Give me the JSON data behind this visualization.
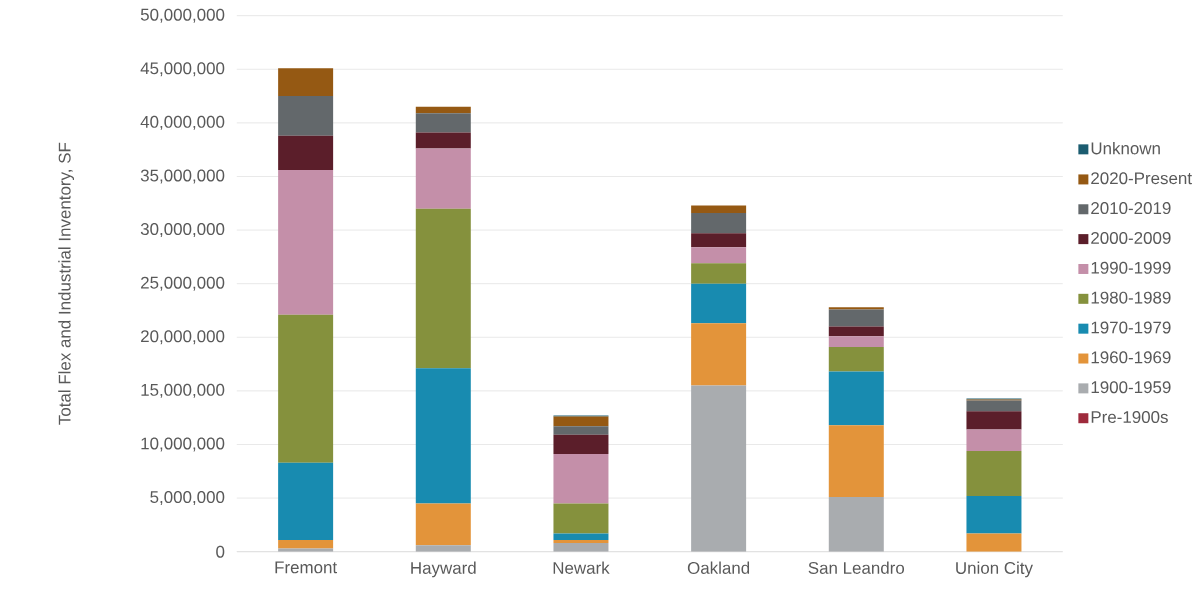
{
  "chart_data": {
    "type": "bar",
    "stacked": true,
    "ylabel": "Total Flex and Industrial Inventory, SF",
    "categories": [
      "Fremont",
      "Hayward",
      "Newark",
      "Oakland",
      "San Leandro",
      "Union City"
    ],
    "series": [
      {
        "name": "Pre-1900s",
        "color": "#9e2a3c",
        "values": [
          0,
          0,
          0,
          0,
          0,
          0
        ]
      },
      {
        "name": "1900-1959",
        "color": "#a9acaf",
        "values": [
          300000,
          600000,
          800000,
          15500000,
          5100000,
          0
        ]
      },
      {
        "name": "1960-1969",
        "color": "#e3943a",
        "values": [
          800000,
          3900000,
          300000,
          5800000,
          6700000,
          1700000
        ]
      },
      {
        "name": "1970-1979",
        "color": "#188bb0",
        "values": [
          7200000,
          12600000,
          600000,
          3700000,
          5000000,
          3500000
        ]
      },
      {
        "name": "1980-1989",
        "color": "#85913d",
        "values": [
          13800000,
          14900000,
          2800000,
          1900000,
          2300000,
          4200000
        ]
      },
      {
        "name": "1990-1999",
        "color": "#c48fa9",
        "values": [
          13500000,
          5600000,
          4600000,
          1500000,
          1000000,
          2000000
        ]
      },
      {
        "name": "2000-2009",
        "color": "#5b1e2a",
        "values": [
          3200000,
          1500000,
          1800000,
          1300000,
          900000,
          1700000
        ]
      },
      {
        "name": "2010-2019",
        "color": "#63686b",
        "values": [
          3700000,
          1800000,
          800000,
          1900000,
          1600000,
          1000000
        ]
      },
      {
        "name": "2020-Present",
        "color": "#955913",
        "values": [
          2600000,
          600000,
          900000,
          700000,
          200000,
          100000
        ]
      },
      {
        "name": "Unknown",
        "color": "#1b5c70",
        "values": [
          0,
          0,
          100000,
          0,
          0,
          100000
        ]
      }
    ],
    "ylim": [
      0,
      50000000
    ],
    "yticks": [
      {
        "value": 0,
        "label": "0"
      },
      {
        "value": 5000000,
        "label": "5,000,000"
      },
      {
        "value": 10000000,
        "label": "10,000,000"
      },
      {
        "value": 15000000,
        "label": "15,000,000"
      },
      {
        "value": 20000000,
        "label": "20,000,000"
      },
      {
        "value": 25000000,
        "label": "25,000,000"
      },
      {
        "value": 30000000,
        "label": "30,000,000"
      },
      {
        "value": 35000000,
        "label": "35,000,000"
      },
      {
        "value": 40000000,
        "label": "40,000,000"
      },
      {
        "value": 45000000,
        "label": "45,000,000"
      },
      {
        "value": 50000000,
        "label": "50,000,000"
      }
    ],
    "grid": "y",
    "legend": "right"
  }
}
